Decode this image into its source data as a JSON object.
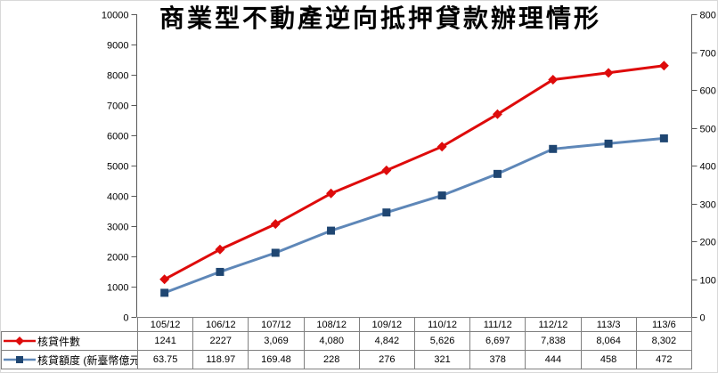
{
  "title": "商業型不動產逆向抵押貸款辦理情形",
  "chart_data": {
    "type": "line",
    "title": "商業型不動產逆向抵押貸款辦理情形",
    "categories": [
      "105/12",
      "106/12",
      "107/12",
      "108/12",
      "109/12",
      "110/12",
      "111/12",
      "112/12",
      "113/3",
      "113/6"
    ],
    "series": [
      {
        "name": "核貸件數",
        "axis": "left",
        "marker": "diamond",
        "color": "#de0b0b",
        "marker_color": "#de0b0b",
        "values": [
          1241,
          2227,
          3069,
          4080,
          4842,
          5626,
          6697,
          7838,
          8064,
          8302
        ],
        "display_values": [
          "1241",
          "2227",
          "3,069",
          "4,080",
          "4,842",
          "5,626",
          "6,697",
          "7,838",
          "8,064",
          "8,302"
        ]
      },
      {
        "name": "核貸額度 (新臺幣億元)",
        "axis": "right",
        "marker": "square",
        "color": "#5e87b8",
        "marker_color": "#1f4672",
        "values": [
          63.75,
          118.97,
          169.48,
          228,
          276,
          321,
          378,
          444,
          458,
          472
        ],
        "display_values": [
          "63.75",
          "118.97",
          "169.48",
          "228",
          "276",
          "321",
          "378",
          "444",
          "458",
          "472"
        ]
      }
    ],
    "left_axis": {
      "min": 0,
      "max": 10000,
      "step": 1000
    },
    "right_axis": {
      "min": 0,
      "max": 800,
      "step": 100
    },
    "grid": false,
    "legend_position": "data-table-left",
    "axis_color": "#595959",
    "table_border_color": "#808080"
  }
}
